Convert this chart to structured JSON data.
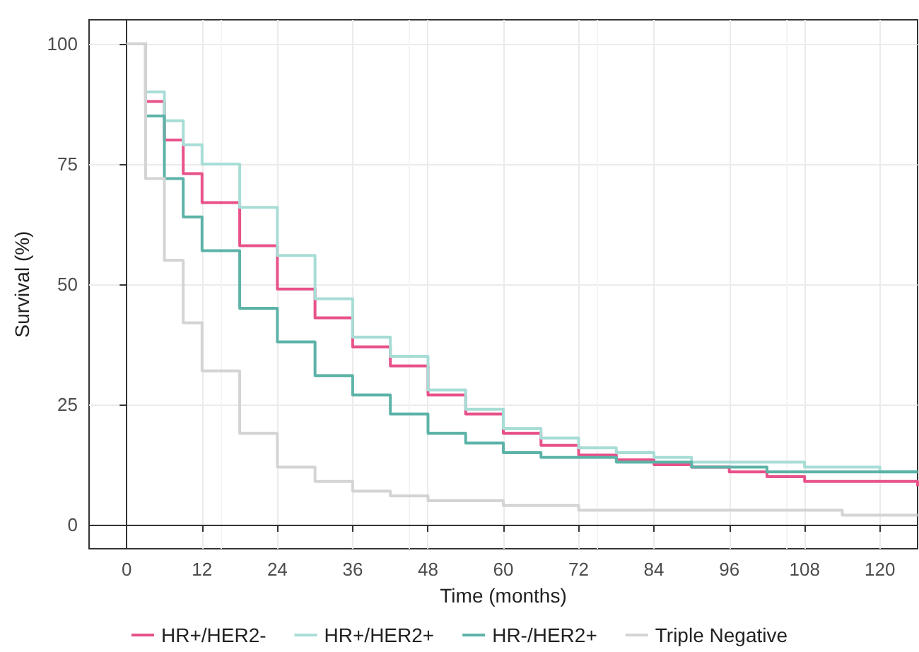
{
  "chart_data": {
    "type": "step",
    "xlabel": "Time (months)",
    "ylabel": "Survival (%)",
    "x": [
      0,
      3,
      6,
      9,
      12,
      18,
      24,
      30,
      36,
      42,
      48,
      54,
      60,
      66,
      72,
      78,
      84,
      90,
      96,
      102,
      108,
      114,
      120,
      126
    ],
    "series": [
      {
        "name": "HR+/HER2-",
        "color": "#e8528a",
        "values": [
          100,
          88,
          80,
          73,
          67,
          58,
          49,
          43,
          37,
          33,
          27,
          23,
          19,
          16.5,
          14.5,
          13.5,
          12.5,
          12,
          11,
          10,
          9,
          9,
          9,
          8
        ]
      },
      {
        "name": "HR+/HER2+",
        "color": "#a8ddd6",
        "values": [
          100,
          90,
          84,
          79,
          75,
          66,
          56,
          47,
          39,
          35,
          28,
          24,
          20,
          18,
          16,
          15,
          14,
          13,
          13,
          13,
          12,
          12,
          11,
          11
        ]
      },
      {
        "name": "HR-/HER2+",
        "color": "#5db3a8",
        "values": [
          100,
          85,
          72,
          64,
          57,
          45,
          38,
          31,
          27,
          23,
          19,
          17,
          15,
          14,
          14,
          13,
          13,
          12,
          12,
          11,
          11,
          11,
          11,
          11
        ]
      },
      {
        "name": "Triple Negative",
        "color": "#d4d4d4",
        "values": [
          100,
          72,
          55,
          42,
          32,
          19,
          12,
          9,
          7,
          6,
          5,
          5,
          4,
          4,
          3,
          3,
          3,
          3,
          3,
          3,
          3,
          2,
          2,
          2
        ]
      }
    ],
    "xlim": [
      -6,
      126
    ],
    "xticks": [
      0,
      12,
      24,
      36,
      48,
      60,
      72,
      84,
      96,
      108,
      120
    ],
    "ylim": [
      -5,
      105
    ],
    "yticks": [
      0,
      25,
      50,
      75,
      100
    ],
    "grid": true,
    "legend": "bottom",
    "marker": "none",
    "line_style": "solid"
  }
}
